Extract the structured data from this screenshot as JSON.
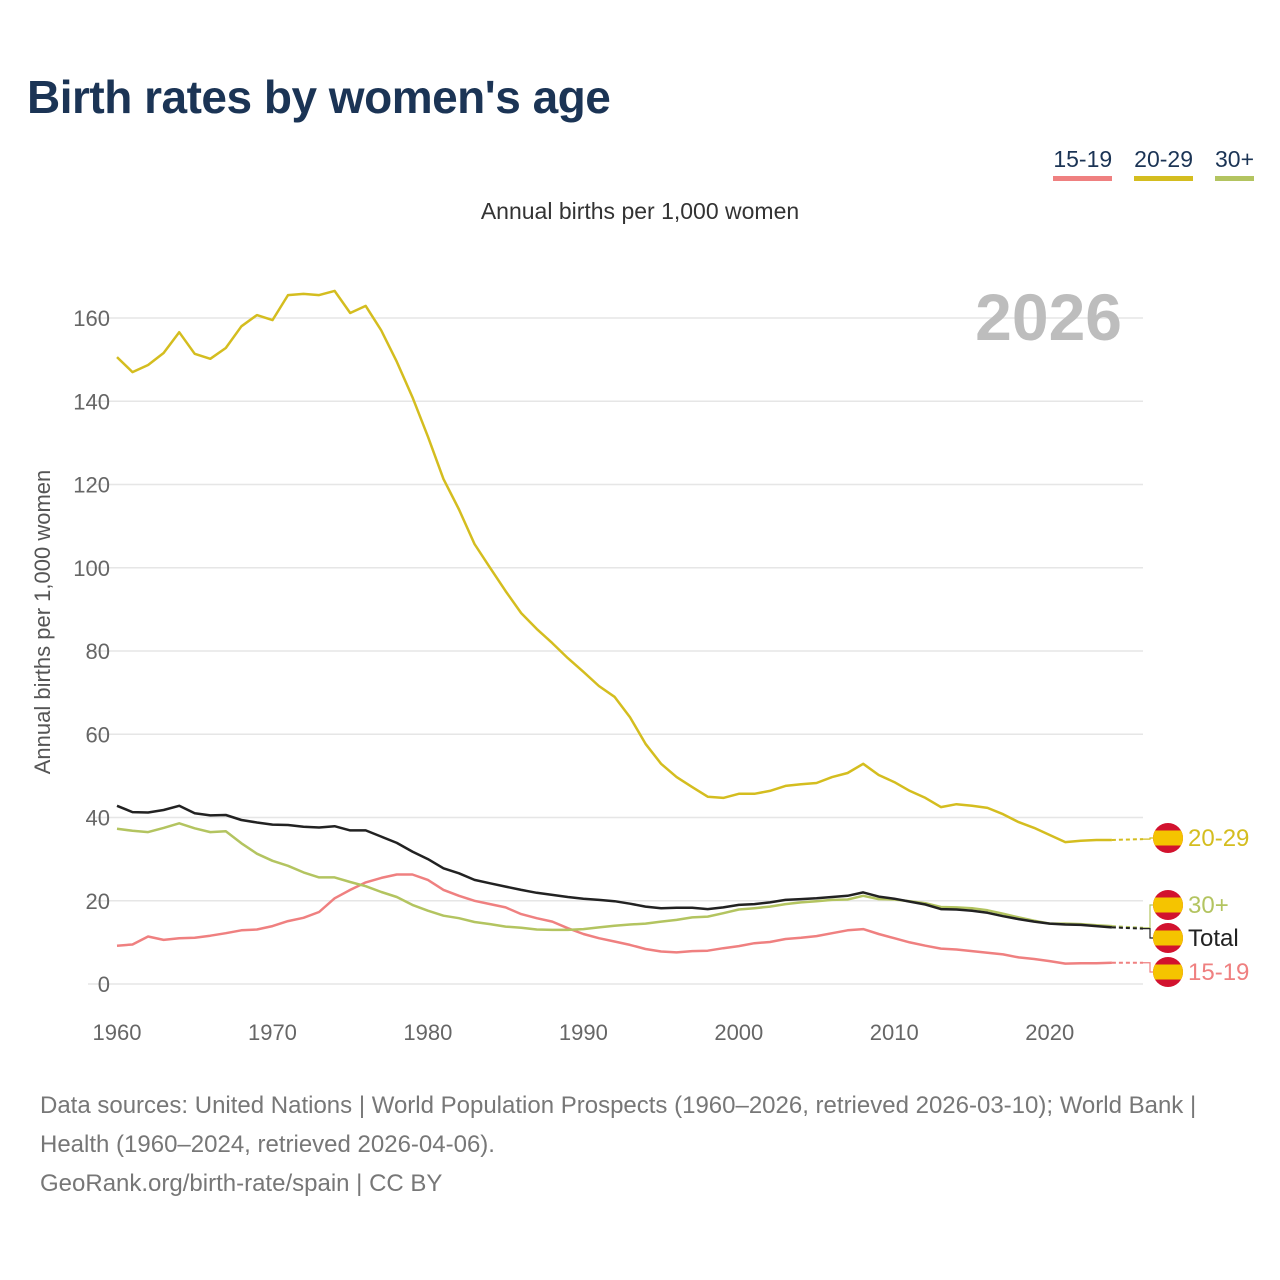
{
  "title": "Birth rates by women's age",
  "subtitle": "Annual births per 1,000 women",
  "footer": {
    "line1": "Data sources: United Nations | World Population Prospects (1960–2026, retrieved 2026-03-10); World Bank | Health (1960–2024, retrieved 2026-04-06).",
    "line2": "GeoRank.org/birth-rate/spain | CC BY"
  },
  "chart_data": {
    "type": "line",
    "title": "Birth rates by women's age",
    "subtitle": "Annual births per 1,000 women",
    "ylabel": "Annual births per 1,000 women",
    "xlabel": "",
    "year_label": "2026",
    "xlim": [
      1960,
      2026
    ],
    "ylim": [
      0,
      170
    ],
    "xticks": [
      1960,
      1970,
      1980,
      1990,
      2000,
      2010,
      2020
    ],
    "yticks": [
      0,
      20,
      40,
      60,
      80,
      100,
      120,
      140,
      160
    ],
    "grid": true,
    "legend_position": "top-right",
    "legend": [
      "15-19",
      "20-29",
      "30+"
    ],
    "projected_from": 2024,
    "x": [
      1960,
      1961,
      1962,
      1963,
      1964,
      1965,
      1966,
      1967,
      1968,
      1969,
      1970,
      1971,
      1972,
      1973,
      1974,
      1975,
      1976,
      1977,
      1978,
      1979,
      1980,
      1981,
      1982,
      1983,
      1984,
      1985,
      1986,
      1987,
      1988,
      1989,
      1990,
      1991,
      1992,
      1993,
      1994,
      1995,
      1996,
      1997,
      1998,
      1999,
      2000,
      2001,
      2002,
      2003,
      2004,
      2005,
      2006,
      2007,
      2008,
      2009,
      2010,
      2011,
      2012,
      2013,
      2014,
      2015,
      2016,
      2017,
      2018,
      2019,
      2020,
      2021,
      2022,
      2023,
      2024,
      2026
    ],
    "series": [
      {
        "name": "20-29",
        "label": "20-29",
        "color": "#d4bd1f",
        "values": [
          150.6,
          147,
          148.7,
          151.6,
          156.6,
          151.4,
          150.2,
          152.8,
          158,
          160.7,
          159.5,
          165.5,
          165.8,
          165.5,
          166.5,
          161.2,
          162.9,
          157,
          149.5,
          141,
          131.5,
          121.3,
          114,
          105.7,
          100,
          94.4,
          89.1,
          85.3,
          81.9,
          78.3,
          75,
          71.6,
          69,
          64.1,
          57.7,
          52.9,
          49.7,
          47.3,
          45,
          44.7,
          45.7,
          45.7,
          46.4,
          47.6,
          48,
          48.3,
          49.7,
          50.7,
          52.9,
          50.2,
          48.5,
          46.4,
          44.7,
          42.5,
          43.2,
          42.8,
          42.3,
          40.8,
          38.9,
          37.5,
          35.8,
          34.1,
          34.4,
          34.6,
          34.6,
          34.8
        ]
      },
      {
        "name": "30+",
        "label": "30+",
        "color": "#b3c460",
        "values": [
          37.3,
          36.8,
          36.5,
          37.5,
          38.6,
          37.4,
          36.5,
          36.7,
          33.8,
          31.3,
          29.6,
          28.4,
          26.8,
          25.6,
          25.6,
          24.5,
          23.5,
          22.1,
          20.9,
          19.0,
          17.6,
          16.4,
          15.8,
          14.9,
          14.4,
          13.8,
          13.5,
          13.1,
          13.0,
          13.0,
          13.2,
          13.6,
          14.0,
          14.3,
          14.5,
          15.0,
          15.4,
          16.0,
          16.2,
          17.0,
          17.9,
          18.2,
          18.6,
          19.2,
          19.6,
          19.9,
          20.2,
          20.3,
          21.2,
          20.4,
          20.3,
          19.9,
          19.4,
          18.5,
          18.4,
          18.2,
          17.7,
          16.9,
          16.0,
          15.2,
          14.5,
          14.5,
          14.4,
          14.1,
          13.9,
          13.5
        ]
      },
      {
        "name": "Total",
        "label": "Total",
        "color": "#222222",
        "values": [
          42.8,
          41.3,
          41.2,
          41.8,
          42.8,
          41.0,
          40.5,
          40.6,
          39.4,
          38.8,
          38.3,
          38.2,
          37.8,
          37.6,
          37.9,
          36.9,
          36.9,
          35.4,
          33.9,
          31.8,
          30.0,
          27.8,
          26.6,
          25.0,
          24.2,
          23.4,
          22.6,
          21.9,
          21.4,
          20.9,
          20.5,
          20.2,
          19.9,
          19.3,
          18.6,
          18.2,
          18.3,
          18.3,
          18.0,
          18.4,
          19.0,
          19.2,
          19.6,
          20.2,
          20.4,
          20.6,
          20.9,
          21.2,
          22.0,
          21.0,
          20.5,
          19.8,
          19.1,
          18.0,
          17.9,
          17.6,
          17.1,
          16.3,
          15.6,
          15.0,
          14.5,
          14.3,
          14.2,
          13.9,
          13.6,
          13.3
        ]
      },
      {
        "name": "15-19",
        "label": "15-19",
        "color": "#ef8080",
        "values": [
          9.2,
          9.5,
          11.4,
          10.6,
          11.0,
          11.1,
          11.6,
          12.2,
          12.9,
          13.1,
          13.9,
          15.1,
          15.9,
          17.3,
          20.6,
          22.6,
          24.4,
          25.5,
          26.3,
          26.3,
          25.0,
          22.6,
          21.2,
          20.0,
          19.2,
          18.4,
          16.8,
          15.8,
          15.0,
          13.4,
          12.0,
          11.0,
          10.2,
          9.4,
          8.4,
          7.8,
          7.6,
          7.9,
          8.0,
          8.6,
          9.1,
          9.8,
          10.1,
          10.8,
          11.1,
          11.5,
          12.2,
          12.9,
          13.2,
          12.0,
          11.0,
          10.0,
          9.2,
          8.5,
          8.3,
          7.9,
          7.5,
          7.1,
          6.4,
          6.0,
          5.5,
          4.9,
          5.0,
          5.0,
          5.1,
          5.1
        ]
      }
    ]
  },
  "flag_icon": "spain-flag-icon",
  "flag_colors": {
    "red": "#d2122e",
    "yellow": "#f5c400"
  }
}
